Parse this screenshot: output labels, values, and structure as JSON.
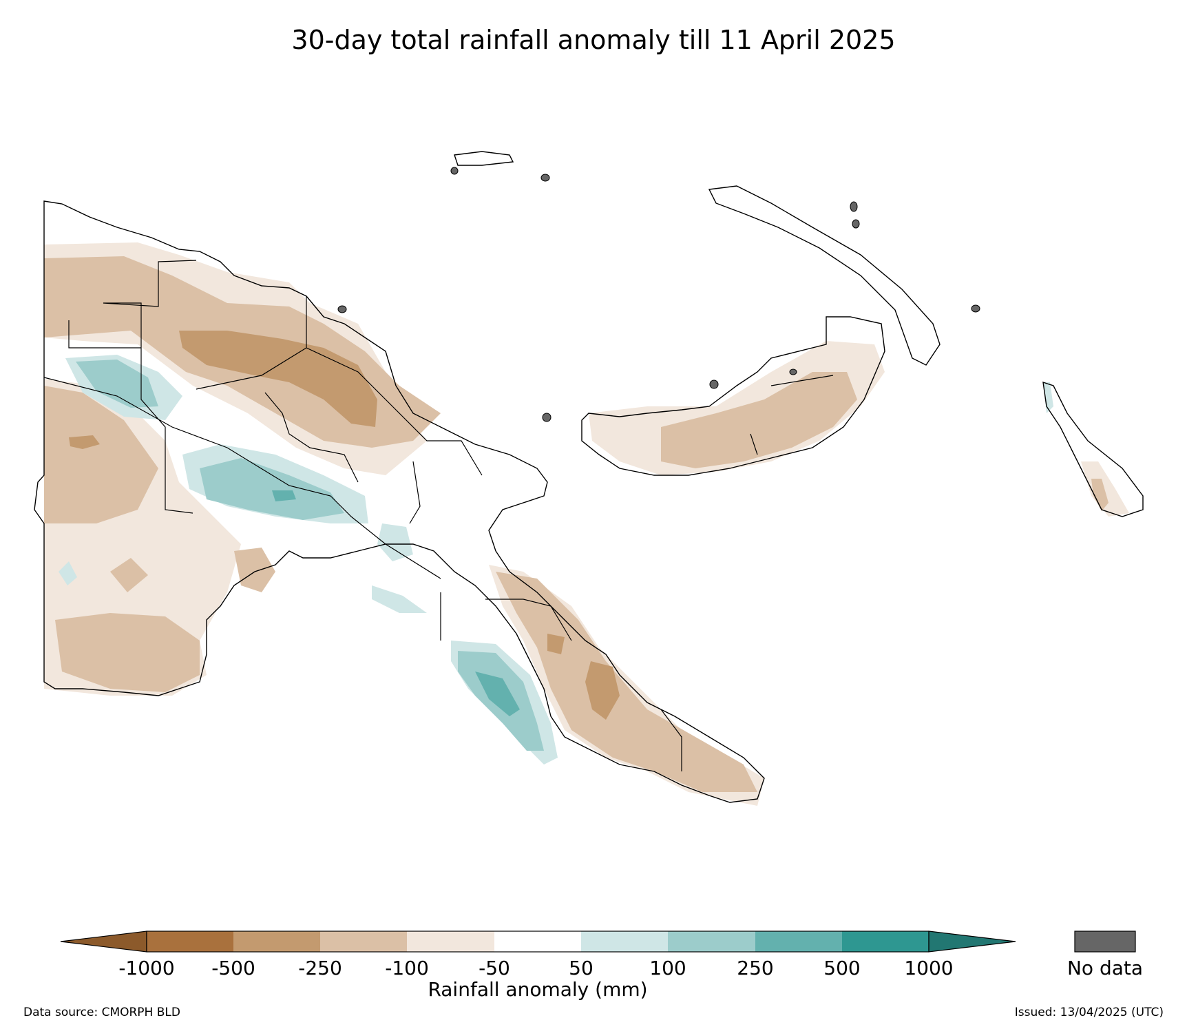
{
  "title": "30-day total rainfall anomaly till 11 April 2025",
  "colorbar": {
    "label": "Rainfall anomaly (mm)",
    "ticks": [
      "-1000",
      "-500",
      "-250",
      "-100",
      "-50",
      "50",
      "100",
      "250",
      "500",
      "1000"
    ],
    "colors": [
      "#8c5a2b",
      "#a9713d",
      "#c39a6f",
      "#dbc0a6",
      "#f2e7dd",
      "#ffffff",
      "#cfe6e6",
      "#9ccccb",
      "#63b1ae",
      "#2e9791",
      "#227772"
    ],
    "nodata_label": "No data",
    "nodata_color": "#666666"
  },
  "footer": {
    "source": "Data source: CMORPH BLD",
    "issued": "Issued: 13/04/2025 (UTC)"
  }
}
